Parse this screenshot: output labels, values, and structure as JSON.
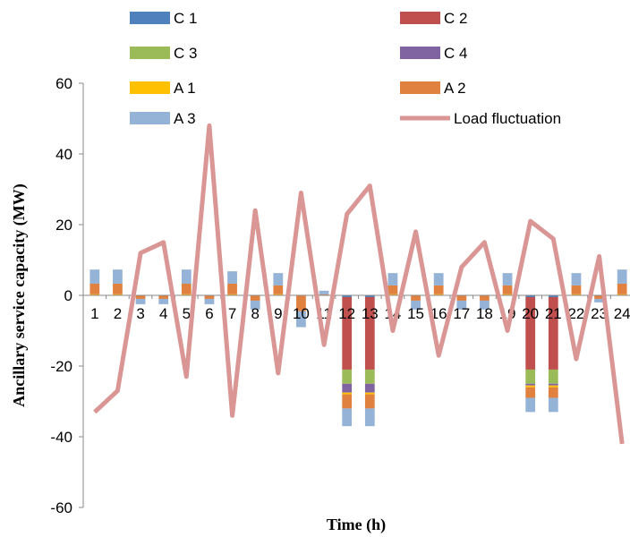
{
  "chart_data": {
    "type": "bar",
    "stacked": true,
    "title": "",
    "xlabel": "Time (h)",
    "ylabel": "Ancillary service capacity (MW)",
    "ylim": [
      -60,
      60
    ],
    "yticks": [
      -60,
      -40,
      -20,
      0,
      20,
      40,
      60
    ],
    "grid": false,
    "legend_position": "top",
    "categories": [
      "1",
      "2",
      "3",
      "4",
      "5",
      "6",
      "7",
      "8",
      "9",
      "10",
      "11",
      "12",
      "13",
      "14",
      "15",
      "16",
      "17",
      "18",
      "19",
      "20",
      "21",
      "22",
      "23",
      "24"
    ],
    "series": [
      {
        "name": "C 1",
        "color": "#4F81BD",
        "values": [
          0,
          0,
          0,
          0,
          0,
          0,
          0,
          0,
          0,
          0,
          0,
          -0.5,
          -0.5,
          0,
          0,
          0,
          0,
          0,
          0,
          -0.5,
          -0.5,
          0,
          0,
          0
        ]
      },
      {
        "name": "C 2",
        "color": "#C0504D",
        "values": [
          0,
          0,
          0,
          0,
          0,
          0,
          0,
          0,
          0,
          0,
          0,
          -20.5,
          -20.5,
          0,
          0,
          0,
          0,
          0,
          0,
          -20.5,
          -20.5,
          0,
          0,
          0
        ]
      },
      {
        "name": "C 3",
        "color": "#9BBB59",
        "values": [
          0,
          0,
          0,
          0,
          0,
          0,
          0,
          0,
          0,
          0,
          0,
          -4,
          -4,
          0,
          0,
          0,
          0,
          0,
          0,
          -4,
          -4,
          0,
          0,
          0
        ]
      },
      {
        "name": "C 4",
        "color": "#8064A2",
        "values": [
          0,
          0,
          0,
          0,
          0,
          0,
          0,
          0,
          0,
          0,
          0,
          -2.5,
          -2.5,
          0,
          0,
          0,
          0,
          0,
          0,
          -0.5,
          -0.5,
          0,
          0,
          0
        ]
      },
      {
        "name": "A 1",
        "color": "#FFC000",
        "values": [
          0.3,
          0.3,
          0,
          0,
          0.3,
          0,
          0.3,
          0,
          0.3,
          0,
          0,
          -0.5,
          -0.5,
          0.3,
          0,
          0.3,
          0,
          0,
          0.3,
          -0.5,
          -0.5,
          0.3,
          0,
          0.3
        ]
      },
      {
        "name": "A 2",
        "color": "#E0813F",
        "values": [
          3,
          3,
          -1,
          -1,
          3,
          -1,
          3,
          -1.5,
          2.5,
          -4.5,
          0.3,
          -4,
          -4,
          2.5,
          -1.5,
          2.5,
          -1.5,
          -1.5,
          2.5,
          -3,
          -3,
          2.5,
          -1,
          3
        ]
      },
      {
        "name": "A 3",
        "color": "#95B3D7",
        "values": [
          4,
          4,
          -1.5,
          -1.5,
          4,
          -1.5,
          3.5,
          -2.5,
          3.5,
          -4.5,
          1,
          -5,
          -5,
          3.5,
          -2.5,
          3.5,
          -2.5,
          -2.5,
          3.5,
          -4,
          -4,
          3.5,
          -1,
          4
        ]
      }
    ],
    "line": {
      "name": "Load fluctuation",
      "color": "#D99694",
      "values": [
        -33,
        -27,
        12,
        15,
        -23,
        48,
        -34,
        24,
        -22,
        29,
        -14,
        23,
        31,
        -10,
        18,
        -17,
        8,
        15,
        -10,
        21,
        16,
        -18,
        11,
        -42
      ]
    }
  }
}
